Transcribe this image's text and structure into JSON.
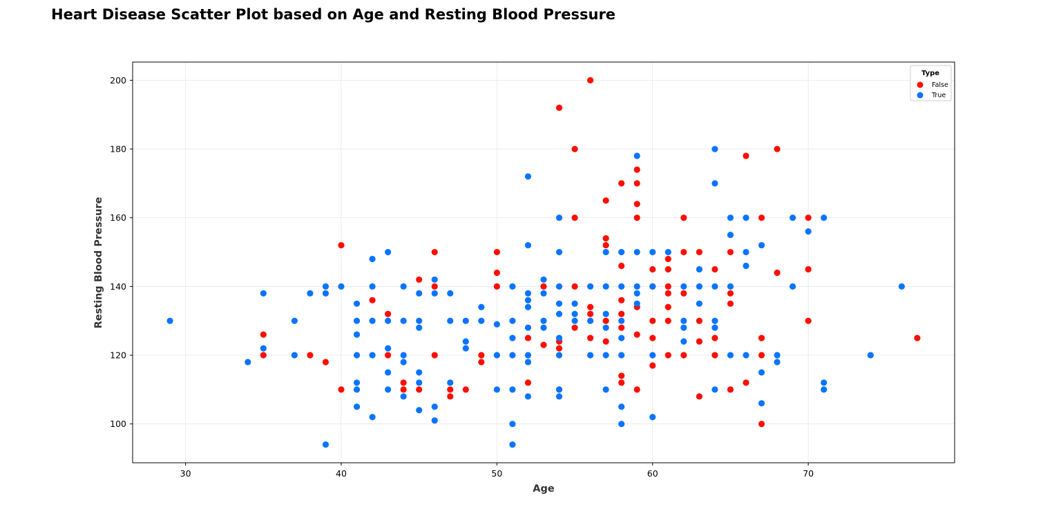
{
  "title": "Heart Disease Scatter Plot based on Age and Resting Blood Pressure",
  "chart_data": {
    "type": "scatter",
    "title": "Heart Disease Scatter Plot based on Age and Resting Blood Pressure",
    "xlabel": "Age",
    "ylabel": "Resting Blood Pressure",
    "xlim": [
      26.6,
      79.4
    ],
    "ylim": [
      88.7,
      205.3
    ],
    "xticks": [
      30,
      40,
      50,
      60,
      70
    ],
    "yticks": [
      100,
      120,
      140,
      160,
      180,
      200
    ],
    "grid": true,
    "legend": {
      "title": "Type",
      "placement": "top-right"
    },
    "series": [
      {
        "name": "False",
        "color": "#ff0d00",
        "points": [
          [
            35,
            126
          ],
          [
            35,
            120
          ],
          [
            38,
            120
          ],
          [
            39,
            118
          ],
          [
            40,
            152
          ],
          [
            40,
            110
          ],
          [
            42,
            136
          ],
          [
            43,
            132
          ],
          [
            43,
            120
          ],
          [
            44,
            112
          ],
          [
            44,
            110
          ],
          [
            45,
            142
          ],
          [
            45,
            110
          ],
          [
            46,
            150
          ],
          [
            46,
            140
          ],
          [
            46,
            120
          ],
          [
            47,
            110
          ],
          [
            47,
            108
          ],
          [
            48,
            110
          ],
          [
            49,
            120
          ],
          [
            49,
            118
          ],
          [
            50,
            150
          ],
          [
            50,
            144
          ],
          [
            50,
            140
          ],
          [
            52,
            125
          ],
          [
            52,
            112
          ],
          [
            53,
            140
          ],
          [
            53,
            123
          ],
          [
            54,
            192
          ],
          [
            54,
            124
          ],
          [
            54,
            122
          ],
          [
            54,
            110
          ],
          [
            55,
            180
          ],
          [
            55,
            160
          ],
          [
            55,
            140
          ],
          [
            55,
            128
          ],
          [
            56,
            200
          ],
          [
            56,
            134
          ],
          [
            56,
            132
          ],
          [
            56,
            125
          ],
          [
            57,
            165
          ],
          [
            57,
            154
          ],
          [
            57,
            152
          ],
          [
            57,
            130
          ],
          [
            57,
            124
          ],
          [
            58,
            170
          ],
          [
            58,
            146
          ],
          [
            58,
            136
          ],
          [
            58,
            132
          ],
          [
            58,
            128
          ],
          [
            58,
            114
          ],
          [
            58,
            112
          ],
          [
            59,
            174
          ],
          [
            59,
            170
          ],
          [
            59,
            164
          ],
          [
            59,
            160
          ],
          [
            59,
            134
          ],
          [
            59,
            126
          ],
          [
            59,
            110
          ],
          [
            60,
            145
          ],
          [
            60,
            140
          ],
          [
            60,
            130
          ],
          [
            60,
            125
          ],
          [
            60,
            117
          ],
          [
            61,
            148
          ],
          [
            61,
            145
          ],
          [
            61,
            140
          ],
          [
            61,
            138
          ],
          [
            61,
            134
          ],
          [
            61,
            130
          ],
          [
            61,
            120
          ],
          [
            62,
            160
          ],
          [
            62,
            150
          ],
          [
            62,
            138
          ],
          [
            62,
            120
          ],
          [
            63,
            150
          ],
          [
            63,
            130
          ],
          [
            63,
            124
          ],
          [
            63,
            108
          ],
          [
            64,
            145
          ],
          [
            64,
            125
          ],
          [
            64,
            120
          ],
          [
            65,
            150
          ],
          [
            65,
            138
          ],
          [
            65,
            135
          ],
          [
            65,
            110
          ],
          [
            66,
            178
          ],
          [
            66,
            112
          ],
          [
            67,
            160
          ],
          [
            67,
            125
          ],
          [
            67,
            120
          ],
          [
            67,
            100
          ],
          [
            68,
            180
          ],
          [
            68,
            144
          ],
          [
            70,
            160
          ],
          [
            70,
            145
          ],
          [
            70,
            130
          ],
          [
            77,
            125
          ]
        ]
      },
      {
        "name": "True",
        "color": "#0a74ff",
        "points": [
          [
            29,
            130
          ],
          [
            34,
            118
          ],
          [
            35,
            138
          ],
          [
            35,
            122
          ],
          [
            37,
            130
          ],
          [
            37,
            120
          ],
          [
            38,
            138
          ],
          [
            39,
            140
          ],
          [
            39,
            138
          ],
          [
            39,
            94
          ],
          [
            40,
            140
          ],
          [
            41,
            135
          ],
          [
            41,
            130
          ],
          [
            41,
            126
          ],
          [
            41,
            120
          ],
          [
            41,
            112
          ],
          [
            41,
            110
          ],
          [
            41,
            105
          ],
          [
            42,
            148
          ],
          [
            42,
            140
          ],
          [
            42,
            130
          ],
          [
            42,
            120
          ],
          [
            42,
            102
          ],
          [
            43,
            150
          ],
          [
            43,
            130
          ],
          [
            43,
            122
          ],
          [
            43,
            115
          ],
          [
            43,
            110
          ],
          [
            44,
            140
          ],
          [
            44,
            130
          ],
          [
            44,
            120
          ],
          [
            44,
            118
          ],
          [
            44,
            108
          ],
          [
            45,
            138
          ],
          [
            45,
            130
          ],
          [
            45,
            128
          ],
          [
            45,
            115
          ],
          [
            45,
            112
          ],
          [
            45,
            104
          ],
          [
            46,
            142
          ],
          [
            46,
            138
          ],
          [
            46,
            105
          ],
          [
            46,
            101
          ],
          [
            47,
            138
          ],
          [
            47,
            130
          ],
          [
            47,
            112
          ],
          [
            48,
            130
          ],
          [
            48,
            124
          ],
          [
            48,
            122
          ],
          [
            49,
            134
          ],
          [
            49,
            130
          ],
          [
            50,
            129
          ],
          [
            50,
            120
          ],
          [
            50,
            110
          ],
          [
            51,
            140
          ],
          [
            51,
            130
          ],
          [
            51,
            125
          ],
          [
            51,
            120
          ],
          [
            51,
            110
          ],
          [
            51,
            100
          ],
          [
            51,
            94
          ],
          [
            52,
            172
          ],
          [
            52,
            152
          ],
          [
            52,
            138
          ],
          [
            52,
            136
          ],
          [
            52,
            134
          ],
          [
            52,
            128
          ],
          [
            52,
            120
          ],
          [
            52,
            118
          ],
          [
            52,
            108
          ],
          [
            53,
            142
          ],
          [
            53,
            138
          ],
          [
            53,
            130
          ],
          [
            53,
            128
          ],
          [
            54,
            160
          ],
          [
            54,
            150
          ],
          [
            54,
            140
          ],
          [
            54,
            135
          ],
          [
            54,
            132
          ],
          [
            54,
            125
          ],
          [
            54,
            120
          ],
          [
            54,
            110
          ],
          [
            54,
            108
          ],
          [
            55,
            135
          ],
          [
            55,
            132
          ],
          [
            55,
            130
          ],
          [
            56,
            140
          ],
          [
            56,
            130
          ],
          [
            56,
            120
          ],
          [
            57,
            150
          ],
          [
            57,
            140
          ],
          [
            57,
            132
          ],
          [
            57,
            128
          ],
          [
            57,
            120
          ],
          [
            57,
            110
          ],
          [
            58,
            150
          ],
          [
            58,
            140
          ],
          [
            58,
            130
          ],
          [
            58,
            125
          ],
          [
            58,
            120
          ],
          [
            58,
            105
          ],
          [
            58,
            100
          ],
          [
            59,
            178
          ],
          [
            59,
            150
          ],
          [
            59,
            140
          ],
          [
            59,
            138
          ],
          [
            59,
            135
          ],
          [
            60,
            150
          ],
          [
            60,
            140
          ],
          [
            60,
            120
          ],
          [
            60,
            102
          ],
          [
            61,
            150
          ],
          [
            62,
            140
          ],
          [
            62,
            130
          ],
          [
            62,
            128
          ],
          [
            62,
            124
          ],
          [
            63,
            145
          ],
          [
            63,
            140
          ],
          [
            63,
            135
          ],
          [
            64,
            180
          ],
          [
            64,
            170
          ],
          [
            64,
            140
          ],
          [
            64,
            130
          ],
          [
            64,
            128
          ],
          [
            64,
            110
          ],
          [
            65,
            160
          ],
          [
            65,
            155
          ],
          [
            65,
            140
          ],
          [
            65,
            120
          ],
          [
            66,
            160
          ],
          [
            66,
            150
          ],
          [
            66,
            146
          ],
          [
            66,
            120
          ],
          [
            67,
            152
          ],
          [
            67,
            115
          ],
          [
            67,
            106
          ],
          [
            68,
            120
          ],
          [
            68,
            118
          ],
          [
            69,
            160
          ],
          [
            69,
            140
          ],
          [
            70,
            156
          ],
          [
            71,
            160
          ],
          [
            71,
            112
          ],
          [
            71,
            110
          ],
          [
            74,
            120
          ],
          [
            76,
            140
          ]
        ]
      }
    ]
  }
}
